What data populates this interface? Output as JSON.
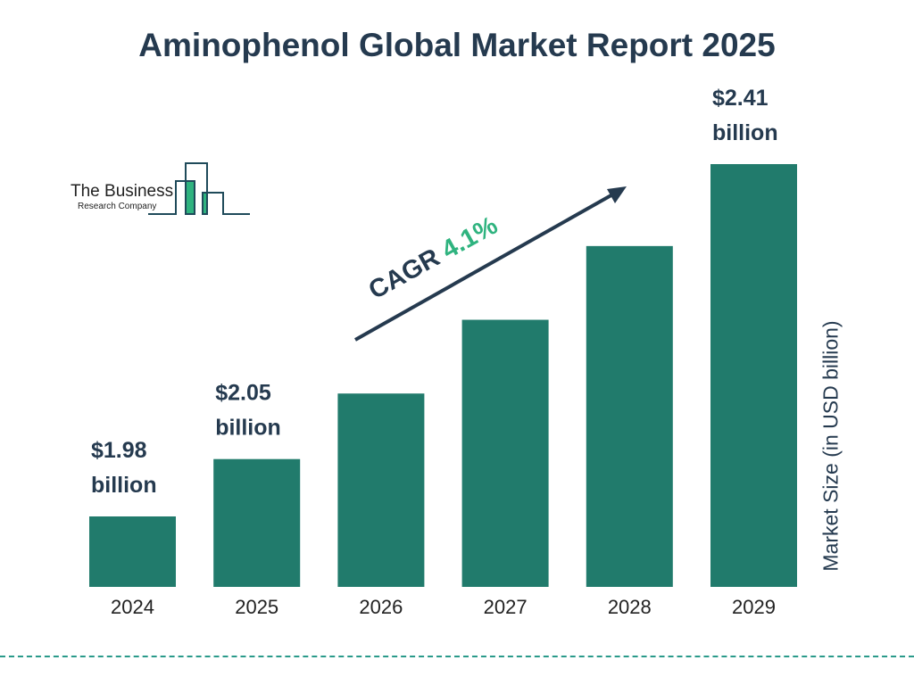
{
  "chart_data": {
    "type": "bar",
    "title": "Aminophenol Global Market Report 2025",
    "categories": [
      "2024",
      "2025",
      "2026",
      "2027",
      "2028",
      "2029"
    ],
    "values": [
      1.98,
      2.05,
      2.13,
      2.22,
      2.31,
      2.41
    ],
    "data_labels": [
      {
        "index": 0,
        "line1": "$1.98",
        "line2": "billion"
      },
      {
        "index": 1,
        "line1": "$2.05",
        "line2": "billion"
      },
      {
        "index": 5,
        "line1": "$2.41",
        "line2": "billion"
      }
    ],
    "ylabel": "Market Size (in USD billion)",
    "xlabel": "",
    "grid": false,
    "bar_color": "#217b6c",
    "annotation": {
      "prefix": "CAGR ",
      "value": "4.1%",
      "prefix_color": "#253a4f",
      "value_color": "#2fb37f"
    }
  },
  "logo": {
    "line1": "The Business",
    "line2": "Research Company",
    "text": "The Business Research Company"
  }
}
